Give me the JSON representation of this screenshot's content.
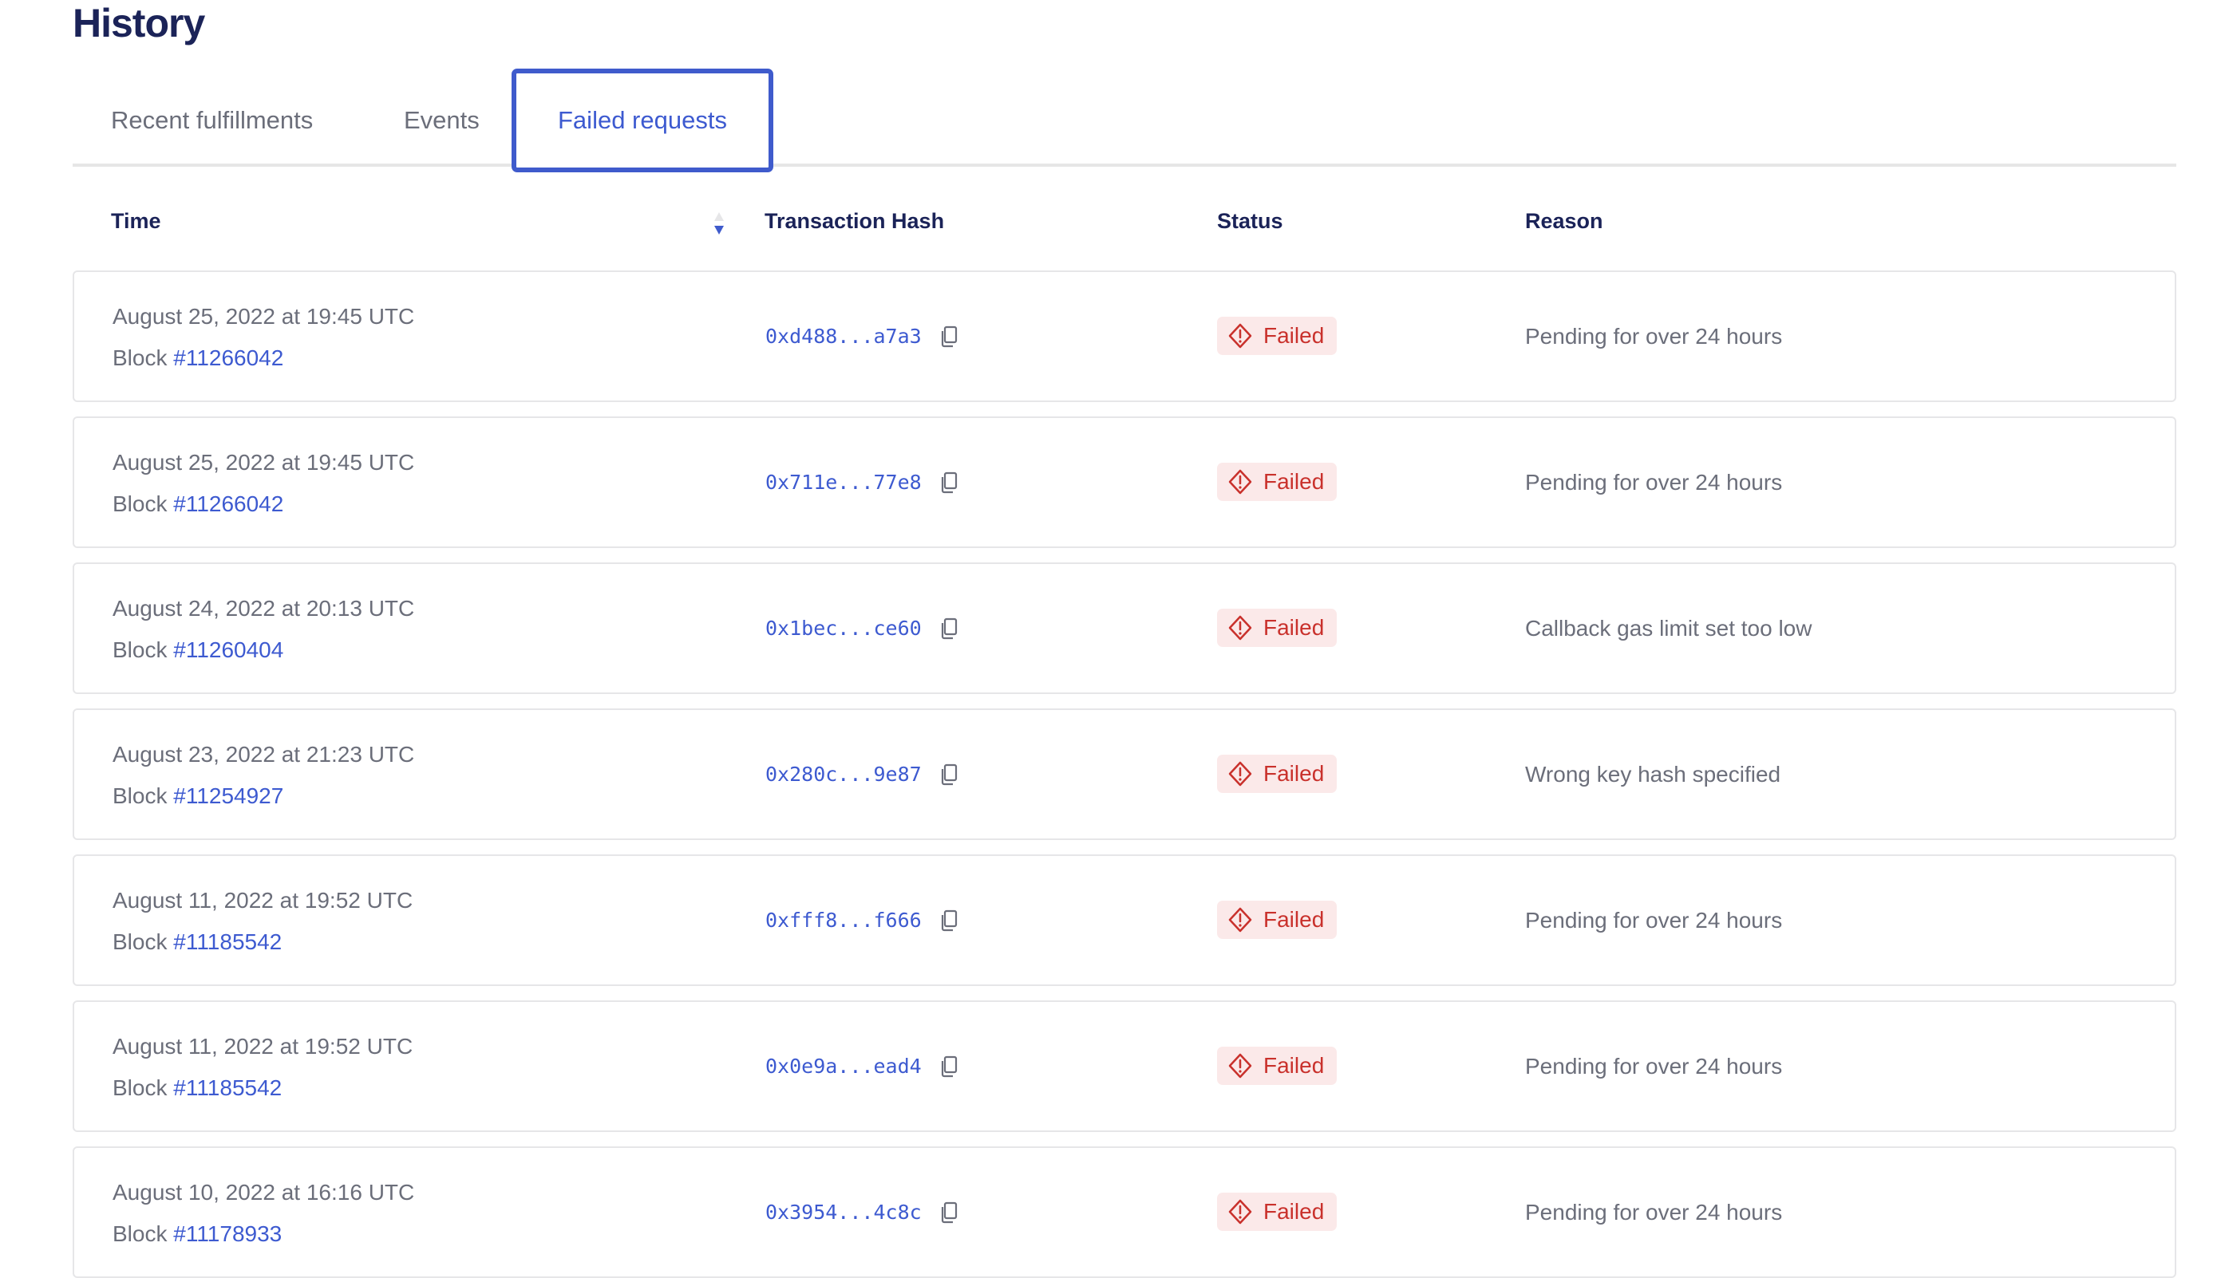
{
  "title": "History",
  "tabs": [
    {
      "label": "Recent fulfillments",
      "active": false
    },
    {
      "label": "Events",
      "active": false
    },
    {
      "label": "Failed requests",
      "active": true
    }
  ],
  "columns": {
    "time": "Time",
    "hash": "Transaction Hash",
    "status": "Status",
    "reason": "Reason"
  },
  "sort": {
    "column": "Time",
    "direction": "descending"
  },
  "colors": {
    "accent": "#3f5bcc",
    "failed_text": "#c9312c",
    "failed_bg": "#fbe9e9",
    "heading": "#1b2358"
  },
  "block_prefix": "Block ",
  "rows": [
    {
      "date": "August 25, 2022 at 19:45 UTC",
      "block": "#11266042",
      "hash": "0xd488...a7a3",
      "status": "Failed",
      "reason": "Pending for over 24 hours"
    },
    {
      "date": "August 25, 2022 at 19:45 UTC",
      "block": "#11266042",
      "hash": "0x711e...77e8",
      "status": "Failed",
      "reason": "Pending for over 24 hours"
    },
    {
      "date": "August 24, 2022 at 20:13 UTC",
      "block": "#11260404",
      "hash": "0x1bec...ce60",
      "status": "Failed",
      "reason": "Callback gas limit set too low"
    },
    {
      "date": "August 23, 2022 at 21:23 UTC",
      "block": "#11254927",
      "hash": "0x280c...9e87",
      "status": "Failed",
      "reason": "Wrong key hash specified"
    },
    {
      "date": "August 11, 2022 at 19:52 UTC",
      "block": "#11185542",
      "hash": "0xfff8...f666",
      "status": "Failed",
      "reason": "Pending for over 24 hours"
    },
    {
      "date": "August 11, 2022 at 19:52 UTC",
      "block": "#11185542",
      "hash": "0x0e9a...ead4",
      "status": "Failed",
      "reason": "Pending for over 24 hours"
    },
    {
      "date": "August 10, 2022 at 16:16 UTC",
      "block": "#11178933",
      "hash": "0x3954...4c8c",
      "status": "Failed",
      "reason": "Pending for over 24 hours"
    }
  ]
}
